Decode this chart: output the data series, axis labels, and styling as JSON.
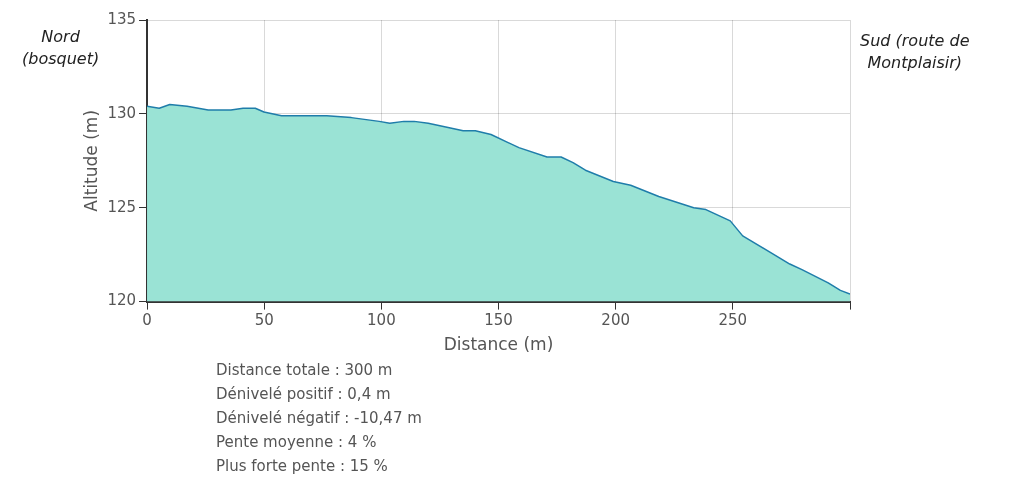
{
  "chart_data": {
    "type": "area",
    "xlabel": "Distance (m)",
    "ylabel": "Altitude (m)",
    "annotations": [
      "Nord\n(bosquet)",
      "Sud (route de\nMontplaisir)",
      "Distance totale : 300 m",
      "Dénivelé positif : 0,4 m",
      "Dénivelé négatif : -10,47 m",
      "Pente moyenne : 4 %",
      "Plus forte pente : 15 %"
    ],
    "x": [
      0,
      5.2,
      9.7,
      17.1,
      26.1,
      35.8,
      41,
      46.2,
      49.9,
      57.4,
      63.3,
      72.3,
      76.7,
      87.2,
      99.1,
      103.6,
      109.6,
      114,
      120,
      127.5,
      134.9,
      140.1,
      146.8,
      158.7,
      170.7,
      176.7,
      181.8,
      187.1,
      199,
      206.4,
      218.4,
      233.3,
      238.5,
      248.9,
      254.2,
      269,
      274.3,
      279.5,
      290.7,
      295.9,
      300
    ],
    "series": [
      {
        "color": "#9ae3d5",
        "values": [
          130.4,
          130.3,
          130.5,
          130.4,
          130.2,
          130.2,
          130.3,
          130.3,
          130.1,
          129.9,
          129.9,
          129.9,
          129.9,
          129.8,
          129.6,
          129.5,
          129.6,
          129.6,
          129.5,
          129.3,
          129.1,
          129.1,
          128.9,
          128.2,
          127.7,
          127.7,
          127.4,
          127,
          126.4,
          126.2,
          125.6,
          125,
          124.9,
          124.3,
          123.5,
          122.4,
          122,
          121.7,
          121,
          120.6,
          120.4
        ]
      }
    ],
    "xlim": [
      0,
      300
    ],
    "xticks": [
      0,
      50,
      100,
      150,
      200,
      250,
      {
        "value": 300,
        "label": null
      }
    ],
    "ylim": [
      120,
      135
    ],
    "yticks": [
      120,
      125,
      130,
      135
    ],
    "grid": true,
    "legend": false,
    "marker": "none",
    "line_style": "solid"
  }
}
